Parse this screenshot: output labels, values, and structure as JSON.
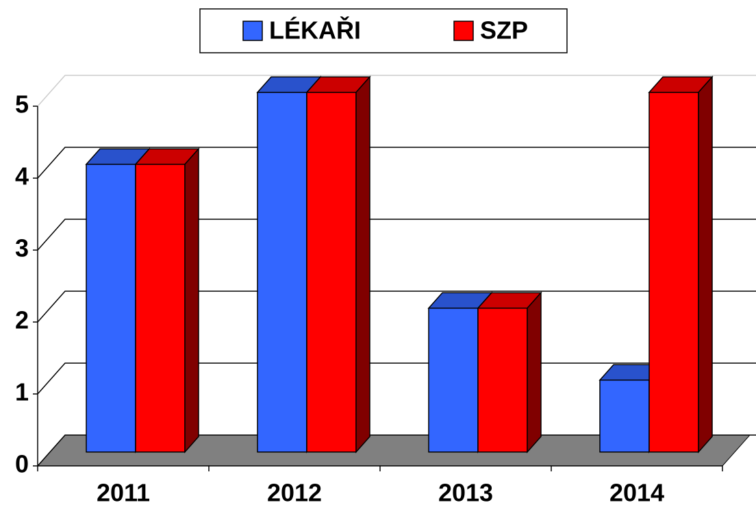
{
  "chart_data": {
    "type": "bar3d",
    "categories": [
      "2011",
      "2012",
      "2013",
      "2014"
    ],
    "series": [
      {
        "name": "LÉKAŘI",
        "color": "#3366ff",
        "values": [
          4,
          5,
          2,
          1
        ]
      },
      {
        "name": "SZP",
        "color": "#ff0000",
        "values": [
          4,
          5,
          2,
          5
        ]
      }
    ],
    "ylim": [
      0,
      5
    ],
    "yticks": [
      0,
      1,
      2,
      3,
      4,
      5
    ],
    "grid": true,
    "legend": "top"
  }
}
